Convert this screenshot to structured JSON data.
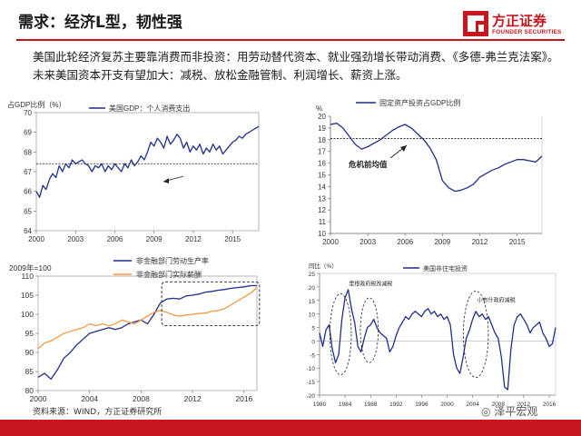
{
  "title": "需求：经济L型，韧性强",
  "logo": {
    "cn": "方正证券",
    "en": "FOUNDER SECURITIES",
    "color": "#c7161e"
  },
  "subtitle": "美国此轮经济复苏主要靠消费而非投资：用劳动替代资本、就业强劲增长带动消费、《多德-弗兰克法案》。未来美国资本开支有望加大：减税、放松金融管制、利润增长、薪资上涨。",
  "source": "资料来源：WIND，方正证券研究所",
  "wechat": "泽平宏观",
  "chart_data": [
    {
      "id": "consumption",
      "type": "line",
      "title": "",
      "ylabel_text": "占GDP比例（%）",
      "legend": "美国GDP：个人消费支出",
      "color": "#1f2f8c",
      "ylim": [
        64,
        70
      ],
      "yticks": [
        64,
        65,
        66,
        67,
        68,
        69,
        70
      ],
      "xlim": [
        2000,
        2017
      ],
      "xticks": [
        2000,
        2003,
        2006,
        2009,
        2012,
        2015
      ],
      "hline": 67.4,
      "x": [
        2000,
        2000.25,
        2000.5,
        2000.75,
        2001,
        2001.25,
        2001.5,
        2001.75,
        2002,
        2002.25,
        2002.5,
        2002.75,
        2003,
        2003.25,
        2003.5,
        2003.75,
        2004,
        2004.25,
        2004.5,
        2004.75,
        2005,
        2005.25,
        2005.5,
        2005.75,
        2006,
        2006.25,
        2006.5,
        2006.75,
        2007,
        2007.25,
        2007.5,
        2007.75,
        2008,
        2008.25,
        2008.5,
        2008.75,
        2009,
        2009.25,
        2009.5,
        2009.75,
        2010,
        2010.25,
        2010.5,
        2010.75,
        2011,
        2011.25,
        2011.5,
        2011.75,
        2012,
        2012.25,
        2012.5,
        2012.75,
        2013,
        2013.25,
        2013.5,
        2013.75,
        2014,
        2014.25,
        2014.5,
        2014.75,
        2015,
        2015.25,
        2015.5,
        2015.75,
        2016,
        2016.25,
        2016.5,
        2016.75,
        2017
      ],
      "values": [
        66.0,
        65.7,
        66.3,
        66.1,
        66.6,
        66.9,
        66.7,
        67.3,
        67.0,
        67.4,
        67.2,
        67.6,
        67.4,
        67.5,
        67.6,
        67.4,
        67.3,
        67.0,
        67.3,
        67.2,
        67.4,
        67.0,
        67.3,
        67.1,
        67.4,
        67.2,
        67.0,
        67.4,
        67.2,
        67.6,
        67.3,
        67.5,
        67.8,
        67.6,
        68.0,
        68.5,
        68.3,
        68.7,
        68.5,
        68.2,
        68.8,
        68.4,
        68.6,
        68.9,
        68.7,
        68.2,
        68.5,
        68.0,
        68.3,
        68.1,
        68.4,
        67.9,
        68.2,
        68.0,
        68.4,
        68.1,
        68.3,
        67.9,
        68.1,
        68.3,
        68.5,
        68.6,
        68.8,
        68.7,
        68.9,
        69.0,
        69.1,
        69.2,
        69.3
      ]
    },
    {
      "id": "investment",
      "type": "line",
      "title": "",
      "ylabel_text": "%",
      "legend": "固定资产投资占GDP比例",
      "color": "#1f2f8c",
      "ylim": [
        10,
        20
      ],
      "yticks": [
        10,
        11,
        12,
        13,
        14,
        15,
        16,
        17,
        18,
        19,
        20
      ],
      "xlim": [
        2000,
        2017
      ],
      "xticks": [
        2000,
        2003,
        2006,
        2009,
        2012,
        2015
      ],
      "hline": 18.1,
      "annotation": "危机前均值",
      "x": [
        2000,
        2000.5,
        2001,
        2001.5,
        2002,
        2002.5,
        2003,
        2003.5,
        2004,
        2004.5,
        2005,
        2005.5,
        2006,
        2006.5,
        2007,
        2007.5,
        2008,
        2008.5,
        2009,
        2009.5,
        2010,
        2010.5,
        2011,
        2011.5,
        2012,
        2012.5,
        2013,
        2013.5,
        2014,
        2014.5,
        2015,
        2015.5,
        2016,
        2016.5,
        2017
      ],
      "values": [
        19.3,
        19.4,
        19.0,
        18.3,
        17.6,
        17.2,
        17.4,
        17.7,
        18.0,
        18.4,
        18.8,
        19.1,
        19.3,
        19.0,
        18.5,
        18.0,
        17.3,
        16.3,
        14.5,
        13.9,
        13.6,
        13.7,
        13.9,
        14.2,
        14.8,
        15.1,
        15.4,
        15.6,
        15.9,
        16.1,
        16.3,
        16.3,
        16.2,
        16.1,
        16.6
      ]
    },
    {
      "id": "productivity",
      "type": "line",
      "title": "",
      "ylabel_text": "2009年=100",
      "ylim": [
        80,
        110
      ],
      "yticks": [
        80,
        85,
        90,
        95,
        100,
        105,
        110
      ],
      "xlim": [
        2000,
        2017
      ],
      "xticks": [
        2000,
        2004,
        2008,
        2012,
        2016
      ],
      "series": [
        {
          "name": "非金融部门劳动生产率",
          "color": "#1f2f8c",
          "x": [
            2000,
            2000.5,
            2001,
            2001.5,
            2002,
            2002.5,
            2003,
            2003.5,
            2004,
            2004.5,
            2005,
            2005.5,
            2006,
            2006.5,
            2007,
            2007.5,
            2008,
            2008.5,
            2009,
            2009.5,
            2010,
            2010.5,
            2011,
            2011.5,
            2012,
            2012.5,
            2013,
            2013.5,
            2014,
            2014.5,
            2015,
            2015.5,
            2016,
            2016.5,
            2017
          ],
          "values": [
            83.5,
            84.5,
            83.0,
            85.5,
            88.5,
            90.0,
            92.0,
            93.5,
            95.0,
            95.5,
            96.0,
            96.5,
            96.0,
            96.5,
            97.5,
            98.0,
            98.5,
            97.5,
            100.0,
            103.0,
            104.0,
            104.2,
            104.0,
            104.8,
            105.0,
            105.3,
            105.8,
            106.0,
            106.3,
            106.5,
            106.8,
            107.0,
            107.2,
            107.5,
            107.5
          ]
        },
        {
          "name": "非金融部门实际薪酬",
          "color": "#f39a3e",
          "x": [
            2000,
            2000.5,
            2001,
            2001.5,
            2002,
            2002.5,
            2003,
            2003.5,
            2004,
            2004.5,
            2005,
            2005.5,
            2006,
            2006.5,
            2007,
            2007.5,
            2008,
            2008.5,
            2009,
            2009.5,
            2010,
            2010.5,
            2011,
            2011.5,
            2012,
            2012.5,
            2013,
            2013.5,
            2014,
            2014.5,
            2015,
            2015.5,
            2016,
            2016.5,
            2017
          ],
          "values": [
            91.0,
            92.5,
            93.0,
            94.0,
            95.0,
            95.5,
            96.0,
            96.5,
            97.5,
            97.0,
            97.5,
            97.0,
            97.5,
            98.5,
            98.0,
            97.5,
            98.5,
            99.5,
            100.5,
            101.0,
            100.5,
            99.8,
            99.5,
            99.8,
            100.0,
            100.2,
            100.3,
            100.8,
            101.0,
            101.5,
            102.5,
            103.5,
            104.5,
            105.5,
            107.0
          ]
        }
      ]
    },
    {
      "id": "housing",
      "type": "line",
      "title": "",
      "ylabel_text": "同比（%）",
      "legend": "美国非住宅投资",
      "color": "#1f2f8c",
      "ylim": [
        -20,
        25
      ],
      "yticks": [
        -20,
        -15,
        -10,
        -5,
        0,
        5,
        10,
        15,
        20,
        25
      ],
      "xlim": [
        1980,
        2017
      ],
      "xticks": [
        1980,
        1984,
        1988,
        1992,
        1996,
        2000,
        2004,
        2008,
        2012,
        2016
      ],
      "annotations": [
        "里根政府税改减税",
        "小布什政府减税"
      ],
      "x": [
        1980,
        1980.5,
        1981,
        1981.5,
        1982,
        1982.5,
        1983,
        1983.5,
        1984,
        1984.5,
        1985,
        1985.5,
        1986,
        1986.5,
        1987,
        1987.5,
        1988,
        1988.5,
        1989,
        1989.5,
        1990,
        1990.5,
        1991,
        1991.5,
        1992,
        1992.5,
        1993,
        1993.5,
        1994,
        1994.5,
        1995,
        1995.5,
        1996,
        1996.5,
        1997,
        1997.5,
        1998,
        1998.5,
        1999,
        1999.5,
        2000,
        2000.5,
        2001,
        2001.5,
        2002,
        2002.5,
        2003,
        2003.5,
        2004,
        2004.5,
        2005,
        2005.5,
        2006,
        2006.5,
        2007,
        2007.5,
        2008,
        2008.5,
        2009,
        2009.5,
        2010,
        2010.5,
        2011,
        2011.5,
        2012,
        2012.5,
        2013,
        2013.5,
        2014,
        2014.5,
        2015,
        2015.5,
        2016,
        2016.5,
        2017
      ],
      "values": [
        3,
        -2,
        4,
        6,
        -3,
        -8,
        -5,
        8,
        16,
        19,
        12,
        7,
        -2,
        -4,
        1,
        5,
        6,
        8,
        5,
        3,
        2,
        1,
        -4,
        -2,
        2,
        5,
        7,
        9,
        8,
        10,
        11,
        10,
        9,
        11,
        12,
        10,
        11,
        9,
        10,
        8,
        9,
        6,
        -5,
        -10,
        -12,
        -6,
        1,
        4,
        8,
        11,
        9,
        10,
        8,
        9,
        6,
        3,
        1,
        -6,
        -17,
        -18,
        -3,
        6,
        9,
        10,
        8,
        6,
        3,
        5,
        6,
        7,
        3,
        1,
        -2,
        -1,
        5
      ]
    }
  ]
}
